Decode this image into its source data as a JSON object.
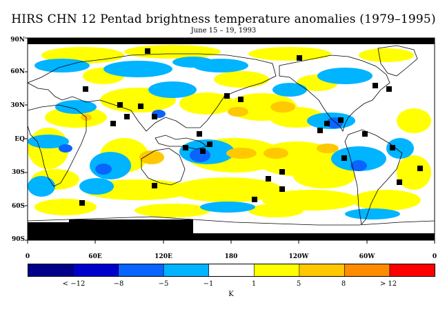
{
  "title": "HIRS CHN 12 Pentad brightness temperature anomalies (1979–1995)",
  "subtitle": "June 15 – 19, 1993",
  "lat_labels": [
    "90N",
    "60N",
    "30N",
    "EQ",
    "30S",
    "60S",
    "90S"
  ],
  "lon_labels": [
    "0",
    "60E",
    "120E",
    "180",
    "120W",
    "60W",
    "0"
  ],
  "colorbar": {
    "colors": [
      "#00008b",
      "#0000cd",
      "#0a64ff",
      "#00b4ff",
      "#ffffff",
      "#ffff00",
      "#ffc800",
      "#ff8c00",
      "#ff0000"
    ],
    "labels": [
      "< −12",
      "−8",
      "−5",
      "−1",
      "1",
      "5",
      "8",
      "> 12"
    ],
    "unit": "K"
  },
  "colors": {
    "land_outline": "#000000",
    "missing": "#000000",
    "positive_small": "#ffff00",
    "positive_mid": "#ffc800",
    "negative_small": "#00b4ff",
    "negative_mid": "#0a64ff"
  }
}
